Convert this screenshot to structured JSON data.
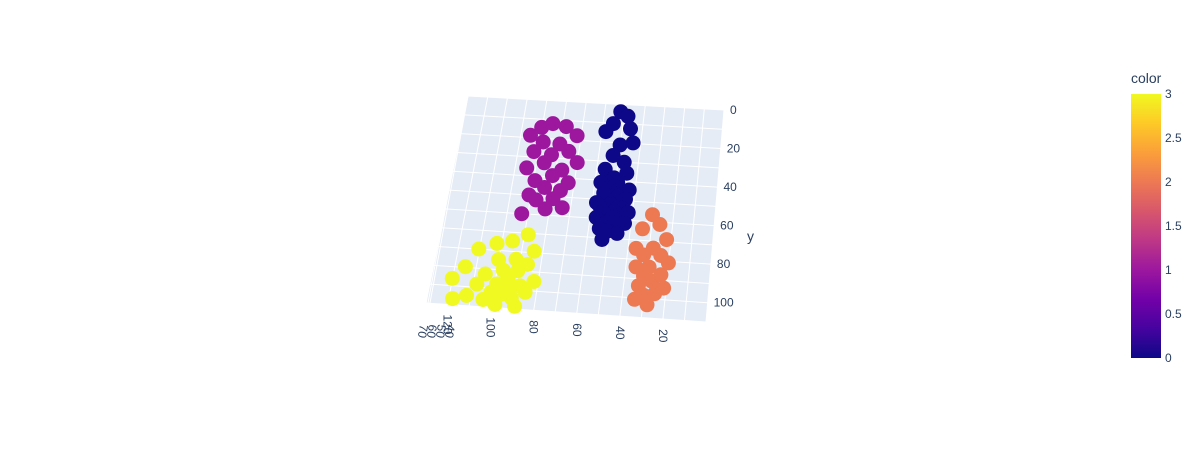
{
  "chart_data": {
    "type": "scatter",
    "subtype": "scatter3d",
    "title": "",
    "axes": {
      "x": {
        "title": "",
        "tick_labels": [
          "20",
          "40",
          "60",
          "80",
          "100",
          "120"
        ]
      },
      "y": {
        "title": "y",
        "tick_labels": [
          "0",
          "20",
          "40",
          "60",
          "80",
          "100"
        ]
      },
      "z": {
        "title": "",
        "tick_labels": [
          "40",
          "50",
          "60",
          "70"
        ]
      }
    },
    "grid": true,
    "colorscale": [
      "#0d0887",
      "#46039f",
      "#7201a8",
      "#9c179e",
      "#bd3786",
      "#d8576b",
      "#ed7953",
      "#fb9f3a",
      "#fdca26",
      "#f0f921"
    ],
    "colorbar": {
      "title": "color",
      "range": [
        0,
        3
      ],
      "tick_labels": [
        "0",
        "0.5",
        "1",
        "1.5",
        "2",
        "2.5",
        "3"
      ],
      "position": "right"
    },
    "series": [
      {
        "cluster": 0,
        "color": "#0d0887",
        "points": [
          [
            52,
            3,
            58
          ],
          [
            48,
            6,
            60
          ],
          [
            55,
            9,
            57
          ],
          [
            46,
            12,
            59
          ],
          [
            58,
            15,
            61
          ],
          [
            44,
            18,
            56
          ],
          [
            50,
            22,
            62
          ],
          [
            53,
            26,
            58
          ],
          [
            47,
            30,
            60
          ],
          [
            56,
            33,
            57
          ],
          [
            45,
            36,
            61
          ],
          [
            51,
            38,
            59
          ],
          [
            49,
            40,
            58
          ],
          [
            54,
            41,
            60
          ],
          [
            57,
            42,
            62
          ],
          [
            43,
            43,
            57
          ],
          [
            50,
            44,
            63
          ],
          [
            52,
            45,
            59
          ],
          [
            46,
            46,
            58
          ],
          [
            55,
            47,
            61
          ],
          [
            48,
            48,
            60
          ],
          [
            53,
            49,
            57
          ],
          [
            44,
            50,
            62
          ],
          [
            58,
            51,
            58
          ],
          [
            51,
            52,
            60
          ],
          [
            47,
            53,
            59
          ],
          [
            56,
            54,
            61
          ],
          [
            49,
            55,
            58
          ],
          [
            42,
            56,
            60
          ],
          [
            54,
            57,
            62
          ],
          [
            50,
            58,
            57
          ],
          [
            45,
            59,
            59
          ],
          [
            57,
            60,
            61
          ],
          [
            52,
            61,
            58
          ],
          [
            48,
            62,
            60
          ],
          [
            43,
            63,
            63
          ],
          [
            55,
            64,
            57
          ],
          [
            51,
            66,
            59
          ],
          [
            46,
            68,
            62
          ],
          [
            53,
            70,
            58
          ]
        ]
      },
      {
        "cluster": 1,
        "color": "#9c179e",
        "points": [
          [
            78,
            14,
            62
          ],
          [
            85,
            12,
            60
          ],
          [
            90,
            16,
            64
          ],
          [
            72,
            18,
            61
          ],
          [
            95,
            20,
            63
          ],
          [
            80,
            22,
            59
          ],
          [
            88,
            24,
            65
          ],
          [
            75,
            26,
            60
          ],
          [
            92,
            28,
            62
          ],
          [
            83,
            30,
            64
          ],
          [
            70,
            32,
            61
          ],
          [
            86,
            34,
            63
          ],
          [
            77,
            36,
            60
          ],
          [
            94,
            38,
            65
          ],
          [
            81,
            40,
            62
          ],
          [
            73,
            42,
            59
          ],
          [
            89,
            44,
            64
          ],
          [
            84,
            46,
            61
          ],
          [
            76,
            48,
            63
          ],
          [
            91,
            50,
            60
          ],
          [
            79,
            52,
            62
          ],
          [
            87,
            54,
            64
          ],
          [
            74,
            56,
            61
          ],
          [
            82,
            58,
            63
          ],
          [
            93,
            60,
            60
          ]
        ]
      },
      {
        "cluster": 2,
        "color": "#ed7953",
        "points": [
          [
            30,
            58,
            64
          ],
          [
            26,
            62,
            62
          ],
          [
            34,
            66,
            65
          ],
          [
            22,
            70,
            63
          ],
          [
            28,
            74,
            61
          ],
          [
            36,
            76,
            64
          ],
          [
            24,
            78,
            62
          ],
          [
            32,
            80,
            66
          ],
          [
            20,
            82,
            63
          ],
          [
            29,
            84,
            61
          ],
          [
            35,
            86,
            65
          ],
          [
            23,
            88,
            62
          ],
          [
            31,
            90,
            64
          ],
          [
            27,
            92,
            63
          ],
          [
            33,
            94,
            61
          ],
          [
            21,
            96,
            65
          ],
          [
            25,
            98,
            62
          ],
          [
            30,
            100,
            64
          ],
          [
            34,
            102,
            63
          ],
          [
            28,
            104,
            62
          ]
        ]
      },
      {
        "cluster": 3,
        "color": "#f0f921",
        "points": [
          [
            88,
            72,
            63
          ],
          [
            95,
            75,
            61
          ],
          [
            102,
            78,
            64
          ],
          [
            84,
            80,
            62
          ],
          [
            110,
            82,
            65
          ],
          [
            92,
            84,
            60
          ],
          [
            100,
            86,
            63
          ],
          [
            86,
            88,
            64
          ],
          [
            115,
            90,
            61
          ],
          [
            97,
            91,
            62
          ],
          [
            90,
            92,
            65
          ],
          [
            105,
            94,
            63
          ],
          [
            82,
            95,
            60
          ],
          [
            94,
            96,
            64
          ],
          [
            120,
            97,
            62
          ],
          [
            99,
            98,
            61
          ],
          [
            88,
            99,
            63
          ],
          [
            108,
            100,
            64
          ],
          [
            93,
            101,
            62
          ],
          [
            101,
            102,
            60
          ],
          [
            85,
            103,
            65
          ],
          [
            96,
            104,
            63
          ],
          [
            112,
            105,
            61
          ],
          [
            91,
            106,
            64
          ],
          [
            104,
            107,
            62
          ],
          [
            118,
            108,
            63
          ],
          [
            89,
            109,
            61
          ],
          [
            98,
            110,
            64
          ]
        ]
      }
    ]
  }
}
